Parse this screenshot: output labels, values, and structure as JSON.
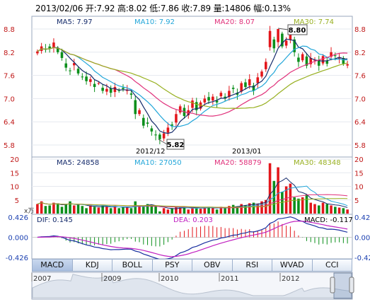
{
  "info": {
    "date": "2013/02/06",
    "open_label": "开:",
    "open": "7.92",
    "high_label": "高:",
    "high": "8.02",
    "low_label": "低:",
    "low": "7.86",
    "close_label": "收:",
    "close": "7.89",
    "vol_label": "量:",
    "vol": "14806",
    "amp_label": "幅:",
    "amp": "0.13%"
  },
  "price_legend": {
    "ma5": "MA5: 7.97",
    "ma10": "MA10: 7.92",
    "ma20": "MA20: 8.07",
    "ma30": "MA30: 7.74"
  },
  "vol_legend": {
    "ma5": "MA5: 24858",
    "ma10": "MA10: 27050",
    "ma20": "MA20: 58879",
    "ma30": "MA30: 48348"
  },
  "macd_legend": {
    "dif": "DIF: 0.145",
    "dea": "DEA: 0.203",
    "macd": "MACD: -0.117"
  },
  "price_ticks": [
    "8.8",
    "8.2",
    "7.6",
    "7.0",
    "6.4",
    "5.8"
  ],
  "vol_ticks": [
    "20",
    "15",
    "10",
    "5"
  ],
  "vol_unit": "x万",
  "macd_ticks": [
    "0.426",
    "0.000",
    "-0.426"
  ],
  "date_labels": [
    "2012/12",
    "2013/01"
  ],
  "callouts": {
    "low": "5.82",
    "high": "8.80"
  },
  "tabs": [
    "MACD",
    "KDJ",
    "BOLL",
    "PSY",
    "OBV",
    "RSI",
    "WVAD",
    "CCI"
  ],
  "nav_years": [
    "2007",
    "2009",
    "2010",
    "2011",
    "2012"
  ],
  "colors": {
    "up": "#e3161b",
    "down": "#0b8f1b",
    "ma5": "#152b6b",
    "ma10": "#22a6d9",
    "ma20": "#e0307a",
    "ma30": "#98b021"
  },
  "chart_data": {
    "type": "candlestick",
    "price_range": [
      5.8,
      8.8
    ],
    "closes": [
      8.22,
      8.35,
      8.28,
      8.3,
      8.45,
      8.2,
      8.05,
      7.8,
      7.72,
      7.92,
      7.65,
      7.55,
      7.45,
      7.5,
      7.3,
      7.4,
      7.2,
      7.25,
      7.15,
      7.3,
      7.2,
      7.25,
      7.22,
      7.1,
      6.6,
      6.7,
      6.3,
      6.35,
      6.15,
      6.05,
      5.95,
      6.1,
      6.25,
      6.3,
      6.6,
      6.8,
      6.55,
      6.7,
      6.95,
      6.7,
      6.9,
      7.0,
      6.95,
      7.05,
      6.9,
      7.15,
      7.0,
      7.2,
      7.25,
      7.1,
      7.4,
      7.3,
      7.5,
      7.2,
      7.55,
      7.7,
      7.95,
      8.75,
      8.3,
      8.8,
      8.35,
      8.5,
      8.65,
      8.2,
      7.95,
      8.15,
      7.85,
      8.05,
      8.0,
      7.85,
      8.1,
      7.9,
      8.2,
      8.1,
      8.05,
      7.9,
      7.89
    ],
    "volume_range": [
      0,
      20
    ],
    "volume_scale": [
      3.5,
      4.5,
      2.8,
      3,
      4,
      3.8,
      2.5,
      3.5,
      4.5,
      3,
      3.2,
      2.8,
      2,
      3,
      2.5,
      2.2,
      3,
      2.5,
      2,
      2.8,
      2,
      2.5,
      2.2,
      2,
      4.5,
      3,
      2.5,
      3.5,
      2.8,
      3,
      0.8,
      2,
      1.5,
      2,
      2.5,
      2.2,
      2.5,
      1.5,
      2.5,
      2,
      1.8,
      2.2,
      2.5,
      2,
      1.5,
      2.5,
      2,
      2.8,
      3.2,
      2.5,
      3.5,
      3,
      3.8,
      4,
      3.5,
      4.5,
      5,
      18.5,
      12,
      17,
      8,
      10,
      11,
      6,
      5.5,
      6,
      7,
      4,
      3.5,
      3,
      4,
      3.5,
      3,
      2.5,
      2.2,
      2,
      1.5
    ],
    "macd_range": [
      -0.426,
      0.426
    ]
  }
}
